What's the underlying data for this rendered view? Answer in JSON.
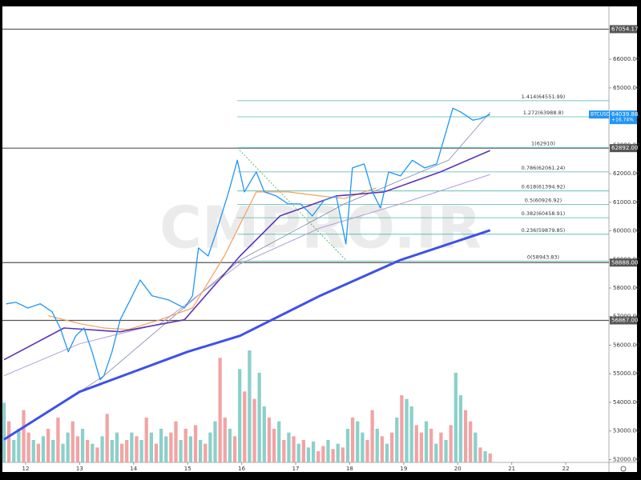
{
  "chart_data": {
    "type": "line",
    "watermark": "CMPRO.IR",
    "xlim": [
      11.57,
      22.8
    ],
    "xticks": [
      12,
      13,
      14,
      15,
      16,
      17,
      18,
      19,
      20,
      21,
      22
    ],
    "ylim": [
      51900,
      67850
    ],
    "yticks": [
      {
        "value": 52000,
        "label": "52000.00"
      },
      {
        "value": 53000,
        "label": "53000.00"
      },
      {
        "value": 54000,
        "label": "54000.00"
      },
      {
        "value": 55000,
        "label": "55000.00"
      },
      {
        "value": 56000,
        "label": "56000.00"
      },
      {
        "value": 57000,
        "label": "57000.00"
      },
      {
        "value": 58000,
        "label": "58000.00"
      },
      {
        "value": 59000,
        "label": "59000.00"
      },
      {
        "value": 60000,
        "label": "60000.00"
      },
      {
        "value": 61000,
        "label": "61000.00"
      },
      {
        "value": 62000,
        "label": "62000.00"
      },
      {
        "value": 63000,
        "label": "63000.00"
      },
      {
        "value": 64000,
        "label": "64000.00"
      },
      {
        "value": 65000,
        "label": "65000.00"
      },
      {
        "value": 66000,
        "label": "66000.00"
      }
    ],
    "levels": [
      {
        "value": 67054.17,
        "label": "67054.17"
      },
      {
        "value": 62892.0,
        "label": "62892.00"
      },
      {
        "value": 58888.0,
        "label": "58888.00"
      },
      {
        "value": 56867.0,
        "label": "56867.00"
      }
    ],
    "level_color": "#555555",
    "fib": [
      {
        "value": 64551.99,
        "label": "1.414(64551.99)"
      },
      {
        "value": 63988.8,
        "label": "1.272(63988.8)"
      },
      {
        "value": 62910,
        "label": "1(62910)"
      },
      {
        "value": 62061.24,
        "label": "0.786(62061.24)"
      },
      {
        "value": 61394.92,
        "label": "0.618(61394.92)"
      },
      {
        "value": 60926.92,
        "label": "0.5(60926.92)"
      },
      {
        "value": 60458.91,
        "label": "0.382(60458.91)"
      },
      {
        "value": 59879.85,
        "label": "0.236(59879.85)"
      },
      {
        "value": 58943.83,
        "label": "0(58943.83)"
      }
    ],
    "fib_start": 15.92,
    "fib_color": "#4db6ac",
    "trendline": {
      "x": [
        15.92,
        17.93
      ],
      "values": [
        62900,
        58980
      ],
      "color": "#66bb6a"
    },
    "symbol": "BTCUSD",
    "last_price": 64039.88,
    "change": "+16.74%",
    "symbol_color": "#2196f3",
    "series": [
      {
        "color": "#2196f3",
        "width": 1.3,
        "x": [
          11.64,
          11.82,
          12.04,
          12.27,
          12.49,
          12.64,
          12.79,
          12.93,
          13.08,
          13.23,
          13.38,
          13.45,
          13.6,
          13.75,
          13.9,
          14.12,
          14.34,
          14.64,
          14.94,
          15.09,
          15.2,
          15.38,
          15.53,
          15.76,
          15.92,
          16.05,
          16.27,
          16.42,
          16.64,
          16.86,
          17.09,
          17.31,
          17.53,
          17.75,
          17.93,
          18.05,
          18.27,
          18.42,
          18.57,
          18.72,
          18.94,
          19.16,
          19.39,
          19.61,
          19.76,
          19.91,
          20.06,
          20.28,
          20.43,
          20.6
        ],
        "values": [
          57447,
          57500,
          57300,
          57450,
          57170,
          56600,
          55770,
          56330,
          56600,
          55770,
          54790,
          54930,
          55770,
          56890,
          57450,
          58280,
          57730,
          57590,
          57300,
          57730,
          59400,
          59120,
          59960,
          61360,
          62470,
          61360,
          62060,
          61360,
          61220,
          60940,
          60940,
          60520,
          61080,
          61220,
          59540,
          62200,
          62340,
          61360,
          60800,
          62060,
          61920,
          62470,
          62200,
          62340,
          63310,
          64290,
          64150,
          63870,
          63930,
          64070
        ]
      },
      {
        "color": "#3f51e8",
        "width": 3,
        "x": [
          11.6,
          13.0,
          15.0,
          15.97,
          17.45,
          18.94,
          20.6
        ],
        "values": [
          52700,
          54370,
          55770,
          56330,
          57730,
          58980,
          60020
        ]
      },
      {
        "color": "#5e35b1",
        "width": 1.6,
        "x": [
          11.6,
          12.71,
          13.75,
          14.94,
          15.97,
          16.71,
          17.75,
          18.64,
          19.68,
          20.6
        ],
        "values": [
          55490,
          56600,
          56470,
          56890,
          59120,
          60520,
          61220,
          61360,
          62060,
          62810
        ]
      },
      {
        "color": "#f5a05a",
        "width": 1.2,
        "x": [
          12.42,
          13.01,
          13.45,
          13.9,
          14.49,
          15.09,
          15.68,
          16.27,
          16.86,
          17.45,
          17.9,
          18.49
        ],
        "values": [
          57030,
          56750,
          56600,
          56550,
          56890,
          57300,
          59120,
          61360,
          61360,
          61220,
          61130,
          61500
        ]
      },
      {
        "color": "#b39ddb",
        "width": 1,
        "x": [
          11.6,
          13.0,
          14.49,
          15.97,
          17.45,
          18.94,
          20.6
        ],
        "values": [
          54930,
          56050,
          56750,
          58840,
          60100,
          60940,
          61970
        ]
      },
      {
        "color": "#7e8aa8",
        "width": 0.8,
        "x": [
          13.0,
          13.45,
          15.97,
          17.9,
          19.83,
          20.6
        ],
        "values": [
          54370,
          54930,
          58980,
          60940,
          62470,
          64150
        ]
      }
    ],
    "volume": {
      "up_color": "#80cbc4",
      "down_color": "#ef9a9a",
      "values": [
        80,
        55,
        30,
        45,
        70,
        40,
        30,
        25,
        35,
        45,
        30,
        60,
        25,
        40,
        55,
        35,
        45,
        30,
        25,
        20,
        35,
        65,
        30,
        40,
        25,
        30,
        40,
        35,
        30,
        60,
        40,
        25,
        45,
        35,
        40,
        55,
        30,
        45,
        35,
        50,
        30,
        25,
        40,
        55,
        140,
        60,
        45,
        35,
        125,
        95,
        150,
        85,
        120,
        75,
        60,
        45,
        55,
        30,
        40,
        35,
        25,
        30,
        20,
        28,
        15,
        22,
        30,
        18,
        25,
        20,
        45,
        60,
        55,
        40,
        30,
        70,
        45,
        35,
        25,
        40,
        60,
        90,
        85,
        75,
        50,
        40,
        55,
        45,
        25,
        40,
        30,
        50,
        120,
        90,
        70,
        55,
        40,
        20,
        15,
        12
      ],
      "up": [
        1,
        0,
        1,
        1,
        0,
        0,
        1,
        0,
        1,
        0,
        1,
        0,
        1,
        1,
        0,
        0,
        1,
        0,
        1,
        0,
        1,
        0,
        1,
        1,
        0,
        0,
        1,
        0,
        1,
        0,
        1,
        0,
        1,
        1,
        0,
        0,
        1,
        0,
        1,
        0,
        1,
        0,
        1,
        1,
        0,
        0,
        1,
        0,
        1,
        0,
        1,
        0,
        1,
        1,
        0,
        0,
        1,
        0,
        1,
        0,
        1,
        0,
        1,
        1,
        0,
        0,
        1,
        0,
        1,
        0,
        1,
        0,
        1,
        1,
        0,
        0,
        1,
        0,
        1,
        0,
        1,
        0,
        1,
        1,
        0,
        0,
        1,
        0,
        1,
        0,
        1,
        0,
        1,
        1,
        0,
        0,
        1,
        0,
        1,
        0
      ]
    }
  }
}
